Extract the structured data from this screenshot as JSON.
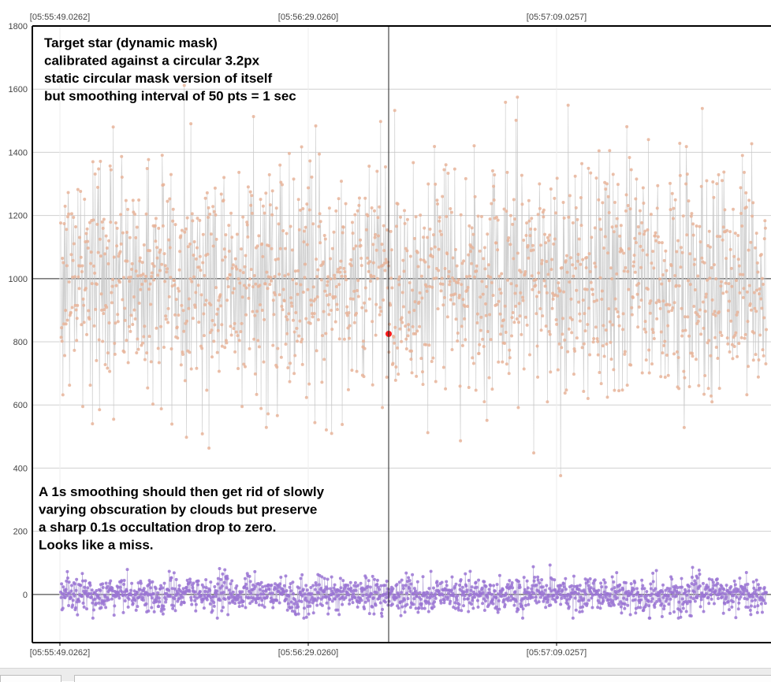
{
  "chart_data": {
    "type": "scatter",
    "x_tick_labels": [
      "[05:55:49.0262]",
      "[05:56:29.0260]",
      "[05:57:09.0257]"
    ],
    "y_ticks": [
      0,
      200,
      400,
      600,
      800,
      1000,
      1200,
      1400,
      1600,
      1800
    ],
    "ylim": [
      -150,
      1800
    ],
    "grid": true,
    "annotations": [
      {
        "lines": [
          "Target star (dynamic mask)",
          "calibrated against a circular 3.2px",
          "static circular mask version of itself",
          "but smoothing interval of 50 pts = 1 sec"
        ]
      },
      {
        "lines": [
          "A 1s smoothing should then get rid of slowly",
          "varying obscuration by clouds but preserve",
          "a sharp 0.1s occultation drop to zero.",
          "Looks like a miss."
        ]
      }
    ],
    "series": [
      {
        "mean": 1000,
        "spread": 190,
        "min_value": 300,
        "max_value": 1740,
        "point_count": 1600,
        "color": "#e8b49a",
        "line_color": "#c8c8c8"
      },
      {
        "mean": 0,
        "spread": 28,
        "min_value": -75,
        "max_value": 140,
        "point_count": 1600,
        "color": "#9a74d4",
        "line_color": "#b6a6d8"
      }
    ],
    "highlight_point": {
      "value": 825,
      "color": "#ff1a1a"
    }
  }
}
